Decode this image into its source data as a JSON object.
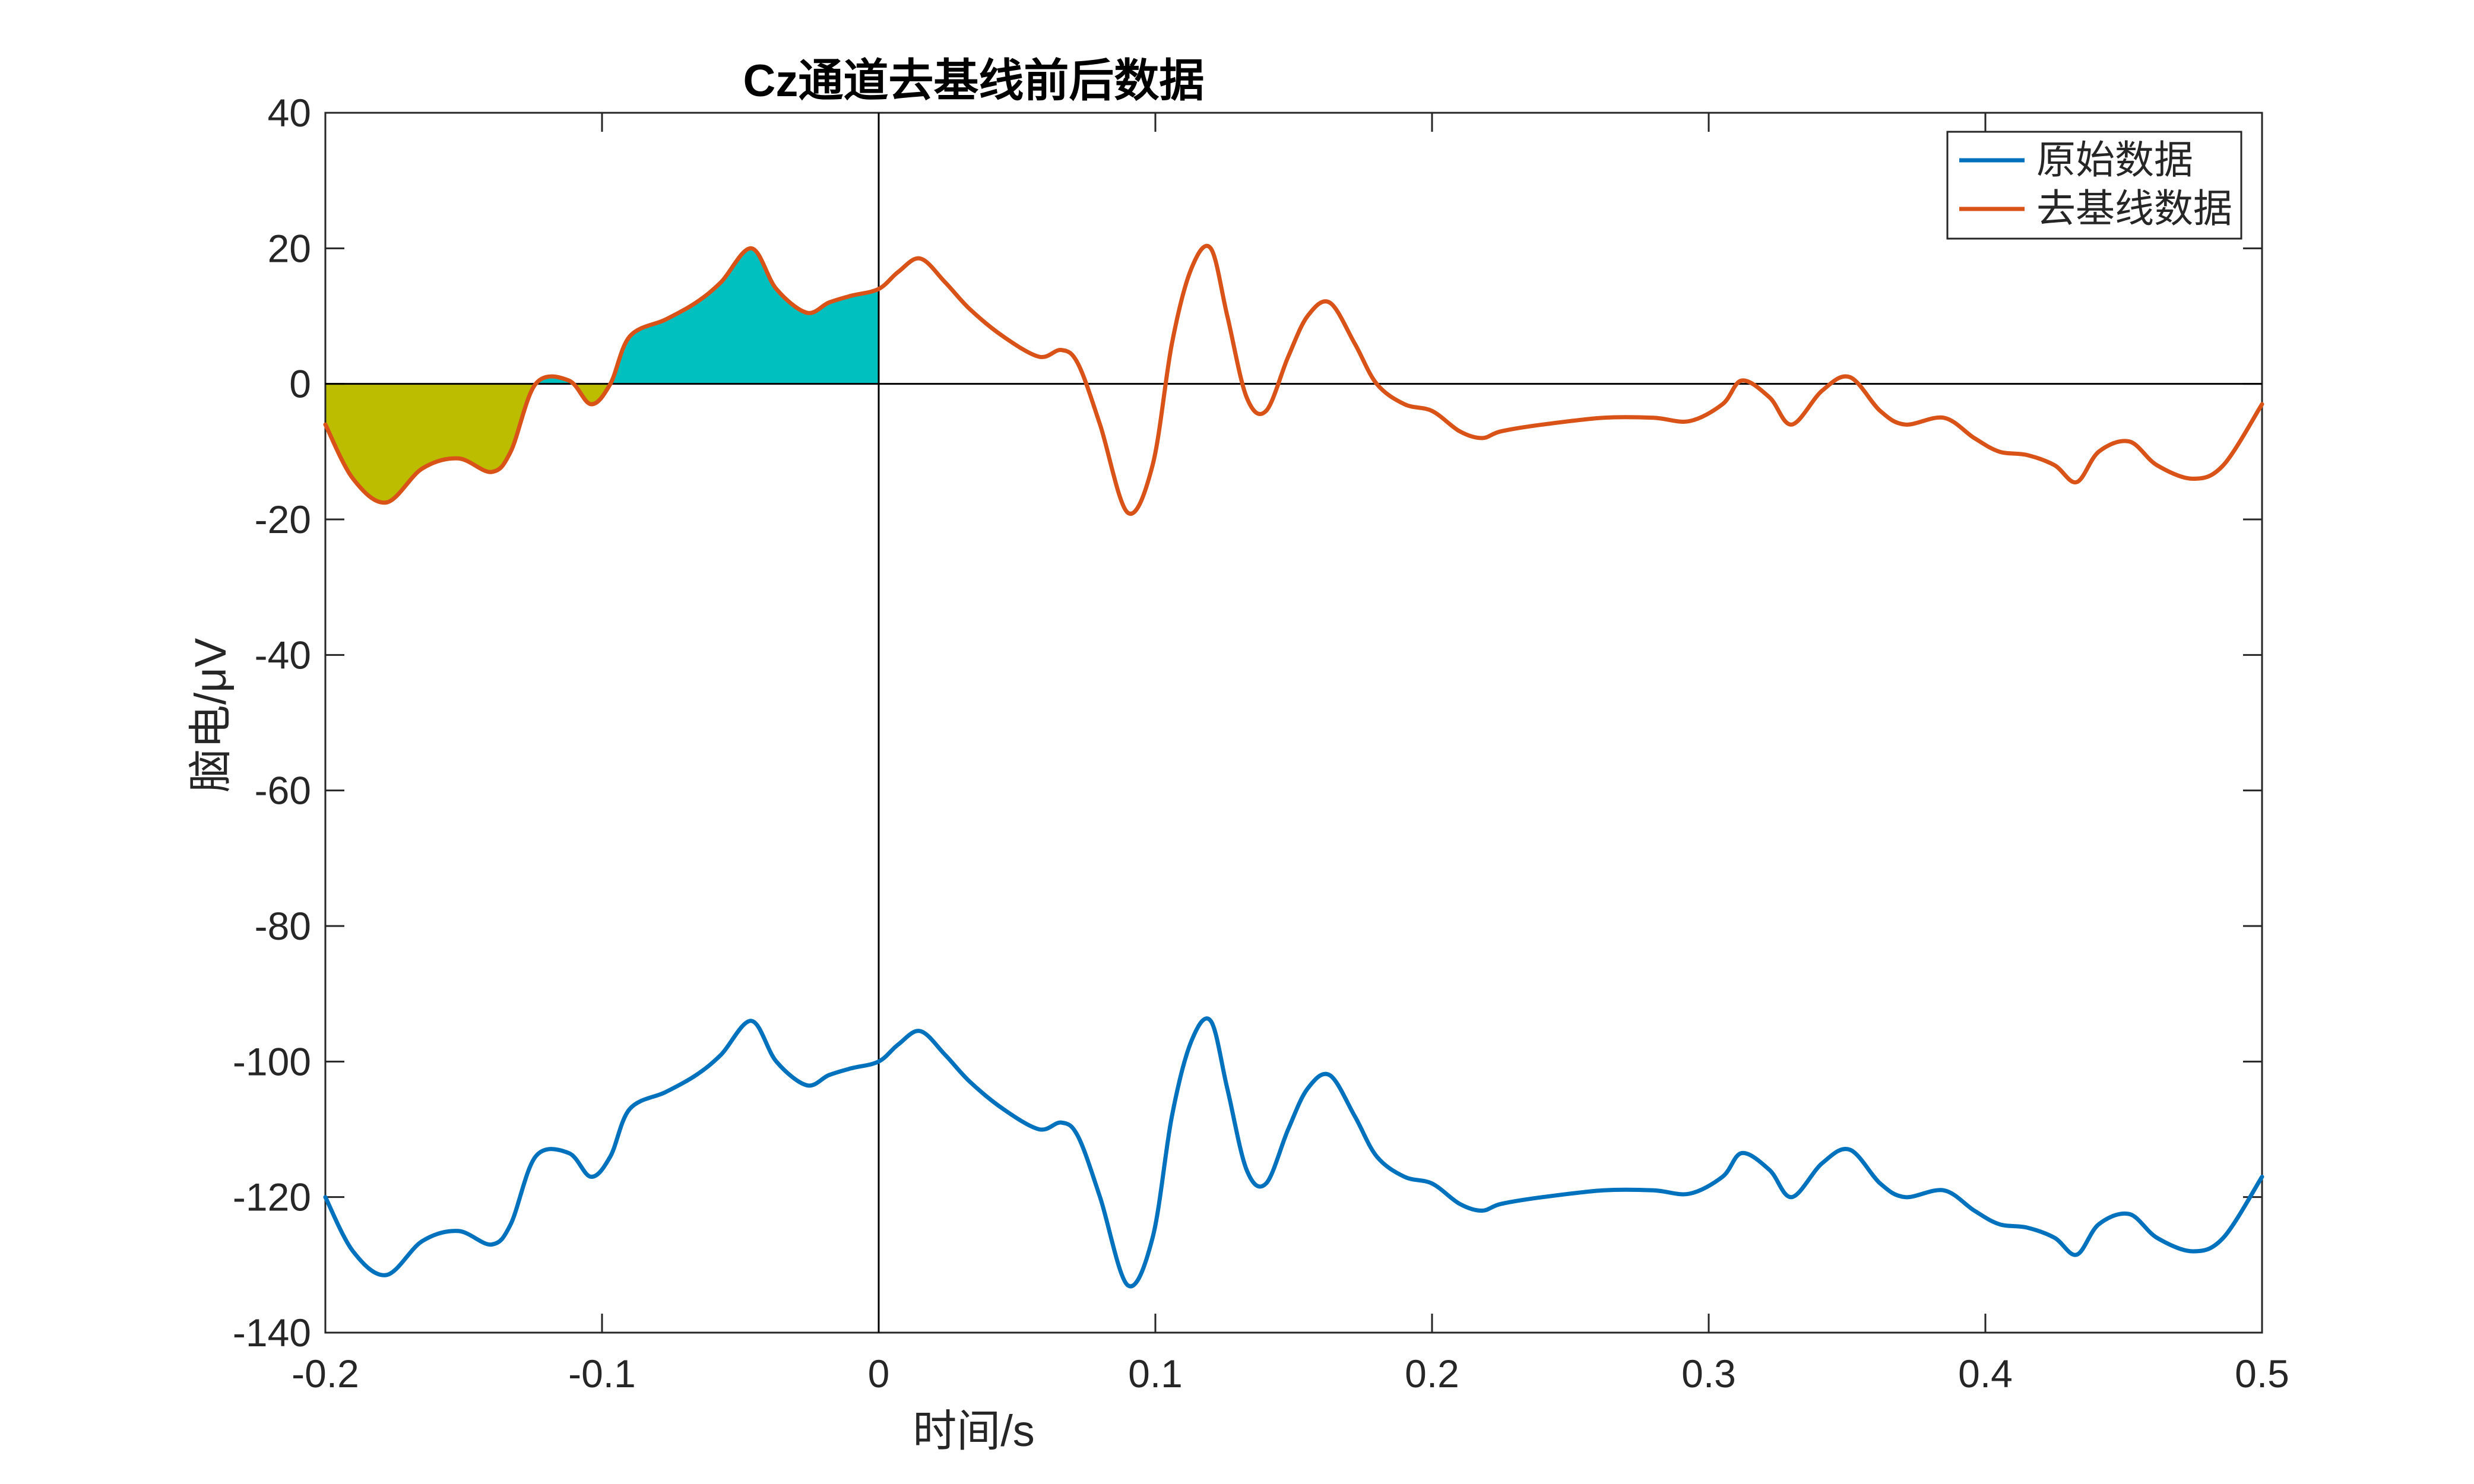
{
  "chart_data": {
    "type": "line",
    "title": "Cz通道去基线前后数据",
    "xlabel": "时间/s",
    "ylabel": "脑电/μV",
    "xlim": [
      -0.2,
      0.5
    ],
    "ylim": [
      -140,
      40
    ],
    "xticks": [
      "-0.2",
      "-0.1",
      "0",
      "0.1",
      "0.2",
      "0.3",
      "0.4",
      "0.5"
    ],
    "yticks": [
      "40",
      "20",
      "0",
      "-20",
      "-40",
      "-60",
      "-80",
      "-100",
      "-120",
      "-140"
    ],
    "legend_position": "top-right",
    "zero_line_x": 0,
    "zero_line_y": 0,
    "fill_baseline": {
      "negative_color": "#BDBD00",
      "positive_color": "#00BFBF",
      "range": [
        -0.2,
        0
      ]
    },
    "series": [
      {
        "name": "原始数据",
        "color": "#0072BD",
        "x": [
          -0.2,
          -0.19,
          -0.178,
          -0.165,
          -0.152,
          -0.14,
          -0.133,
          -0.124,
          -0.112,
          -0.104,
          -0.097,
          -0.09,
          -0.077,
          -0.066,
          -0.057,
          -0.046,
          -0.037,
          -0.026,
          -0.018,
          -0.01,
          0,
          0.007,
          0.015,
          0.024,
          0.033,
          0.045,
          0.058,
          0.066,
          0.072,
          0.08,
          0.09,
          0.099,
          0.106,
          0.113,
          0.12,
          0.126,
          0.133,
          0.14,
          0.148,
          0.155,
          0.163,
          0.172,
          0.18,
          0.19,
          0.2,
          0.21,
          0.218,
          0.225,
          0.24,
          0.262,
          0.28,
          0.293,
          0.305,
          0.312,
          0.322,
          0.33,
          0.341,
          0.351,
          0.362,
          0.371,
          0.385,
          0.396,
          0.405,
          0.415,
          0.425,
          0.433,
          0.441,
          0.452,
          0.462,
          0.475,
          0.486,
          0.5
        ],
        "values": [
          -120,
          -128,
          -131.5,
          -126.5,
          -125,
          -127,
          -124,
          -114,
          -113.5,
          -117,
          -114,
          -107,
          -104.5,
          -102,
          -99,
          -94,
          -100,
          -103.5,
          -102,
          -101,
          -100,
          -97.5,
          -95.5,
          -99,
          -103,
          -107,
          -110,
          -109,
          -111,
          -120,
          -133,
          -126,
          -108,
          -97,
          -94,
          -104,
          -116,
          -118,
          -110,
          -104,
          -102,
          -108,
          -114,
          -117,
          -118,
          -121,
          -122,
          -121,
          -120,
          -119,
          -119,
          -119.5,
          -117,
          -113.5,
          -116,
          -120,
          -115,
          -113,
          -118,
          -120,
          -119,
          -122,
          -124,
          -124.5,
          -126,
          -128.5,
          -124,
          -122.5,
          -126,
          -128,
          -126,
          -117
        ]
      },
      {
        "name": "去基线数据",
        "color": "#D95319",
        "x": [
          -0.2,
          -0.19,
          -0.178,
          -0.165,
          -0.152,
          -0.14,
          -0.133,
          -0.124,
          -0.112,
          -0.104,
          -0.097,
          -0.09,
          -0.077,
          -0.066,
          -0.057,
          -0.046,
          -0.037,
          -0.026,
          -0.018,
          -0.01,
          0,
          0.007,
          0.015,
          0.024,
          0.033,
          0.045,
          0.058,
          0.066,
          0.072,
          0.08,
          0.09,
          0.099,
          0.106,
          0.113,
          0.12,
          0.126,
          0.133,
          0.14,
          0.148,
          0.155,
          0.163,
          0.172,
          0.18,
          0.19,
          0.2,
          0.21,
          0.218,
          0.225,
          0.24,
          0.262,
          0.28,
          0.293,
          0.305,
          0.312,
          0.322,
          0.33,
          0.341,
          0.351,
          0.362,
          0.371,
          0.385,
          0.396,
          0.405,
          0.415,
          0.425,
          0.433,
          0.441,
          0.452,
          0.462,
          0.475,
          0.486,
          0.5
        ],
        "values": [
          -6,
          -14,
          -17.5,
          -12.5,
          -11,
          -13,
          -10,
          0,
          0.5,
          -3,
          0,
          7,
          9.5,
          12,
          15,
          20,
          14,
          10.5,
          12,
          13,
          14,
          16.5,
          18.5,
          15,
          11,
          7,
          4,
          5,
          3,
          -6,
          -19,
          -12,
          6,
          17,
          20,
          10,
          -2,
          -4,
          4,
          10,
          12,
          6,
          0,
          -3,
          -4,
          -7,
          -8,
          -7,
          -6,
          -5,
          -5,
          -5.5,
          -3,
          0.5,
          -2,
          -6,
          -1,
          1,
          -4,
          -6,
          -5,
          -8,
          -10,
          -10.5,
          -12,
          -14.5,
          -10,
          -8.5,
          -12,
          -14,
          -12,
          -3
        ]
      }
    ]
  }
}
